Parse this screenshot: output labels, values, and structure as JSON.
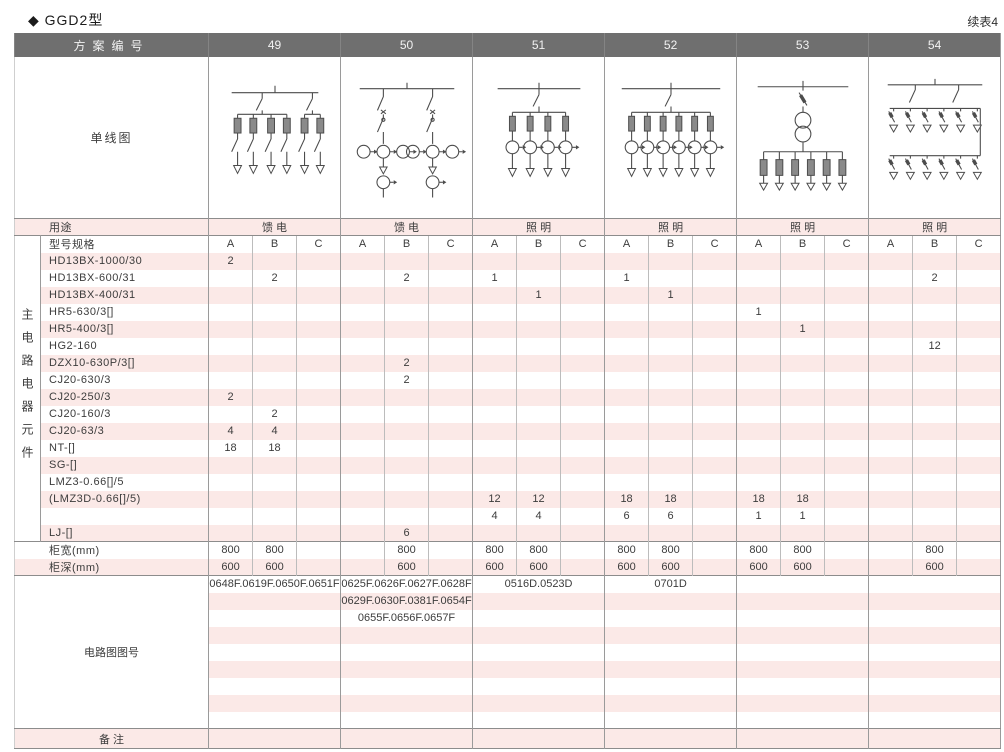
{
  "page": {
    "title": "◆ GGD2型",
    "continuation": "续表4"
  },
  "table": {
    "header": {
      "scheme_label": "方案编号",
      "schemes": [
        "49",
        "50",
        "51",
        "52",
        "53",
        "54"
      ]
    },
    "diagram_label": "单线图",
    "usage": {
      "label": "用途",
      "values": [
        "馈 电",
        "馈 电",
        "照 明",
        "照 明",
        "照 明",
        "照 明"
      ]
    },
    "left_vertical_label": "主电路电器元件",
    "spec": {
      "label": "型号规格",
      "sub_headers": [
        "A",
        "B",
        "C"
      ]
    },
    "components": [
      {
        "label": "HD13BX-1000/30",
        "values": [
          "2",
          "",
          "",
          "",
          "",
          "",
          "",
          "",
          "",
          "",
          "",
          "",
          "",
          "",
          "",
          "",
          "",
          ""
        ]
      },
      {
        "label": "HD13BX-600/31",
        "values": [
          "",
          "2",
          "",
          "",
          "2",
          "",
          "1",
          "",
          "",
          "1",
          "",
          "",
          "",
          "",
          "",
          "",
          "2",
          ""
        ]
      },
      {
        "label": "HD13BX-400/31",
        "values": [
          "",
          "",
          "",
          "",
          "",
          "",
          "",
          "1",
          "",
          "",
          "1",
          "",
          "",
          "",
          "",
          "",
          "",
          ""
        ]
      },
      {
        "label": "HR5-630/3[]",
        "values": [
          "",
          "",
          "",
          "",
          "",
          "",
          "",
          "",
          "",
          "",
          "",
          "",
          "1",
          "",
          "",
          "",
          "",
          ""
        ]
      },
      {
        "label": "HR5-400/3[]",
        "values": [
          "",
          "",
          "",
          "",
          "",
          "",
          "",
          "",
          "",
          "",
          "",
          "",
          "",
          "1",
          "",
          "",
          "",
          ""
        ]
      },
      {
        "label": "HG2-160",
        "values": [
          "",
          "",
          "",
          "",
          "",
          "",
          "",
          "",
          "",
          "",
          "",
          "",
          "",
          "",
          "",
          "",
          "12",
          ""
        ]
      },
      {
        "label": "DZX10-630P/3[]",
        "values": [
          "",
          "",
          "",
          "",
          "2",
          "",
          "",
          "",
          "",
          "",
          "",
          "",
          "",
          "",
          "",
          "",
          "",
          ""
        ]
      },
      {
        "label": "CJ20-630/3",
        "values": [
          "",
          "",
          "",
          "",
          "2",
          "",
          "",
          "",
          "",
          "",
          "",
          "",
          "",
          "",
          "",
          "",
          "",
          ""
        ]
      },
      {
        "label": "CJ20-250/3",
        "values": [
          "2",
          "",
          "",
          "",
          "",
          "",
          "",
          "",
          "",
          "",
          "",
          "",
          "",
          "",
          "",
          "",
          "",
          ""
        ]
      },
      {
        "label": "CJ20-160/3",
        "values": [
          "",
          "2",
          "",
          "",
          "",
          "",
          "",
          "",
          "",
          "",
          "",
          "",
          "",
          "",
          "",
          "",
          "",
          ""
        ]
      },
      {
        "label": "CJ20-63/3",
        "values": [
          "4",
          "4",
          "",
          "",
          "",
          "",
          "",
          "",
          "",
          "",
          "",
          "",
          "",
          "",
          "",
          "",
          "",
          ""
        ]
      },
      {
        "label": "NT-[]",
        "values": [
          "18",
          "18",
          "",
          "",
          "",
          "",
          "",
          "",
          "",
          "",
          "",
          "",
          "",
          "",
          "",
          "",
          "",
          ""
        ]
      },
      {
        "label": "SG-[]",
        "values": [
          "",
          "",
          "",
          "",
          "",
          "",
          "",
          "",
          "",
          "",
          "",
          "",
          "",
          "",
          "",
          "",
          "",
          ""
        ]
      },
      {
        "label": "LMZ3-0.66[]/5",
        "values": [
          "",
          "",
          "",
          "",
          "",
          "",
          "",
          "",
          "",
          "",
          "",
          "",
          "",
          "",
          "",
          "",
          "",
          ""
        ]
      },
      {
        "label": "(LMZ3D-0.66[]/5)",
        "values": [
          "",
          "",
          "",
          "",
          "",
          "",
          "12",
          "12",
          "",
          "18",
          "18",
          "",
          "18",
          "18",
          "",
          "",
          "",
          ""
        ]
      },
      {
        "label": "",
        "values": [
          "",
          "",
          "",
          "",
          "",
          "",
          "4",
          "4",
          "",
          "6",
          "6",
          "",
          "1",
          "1",
          "",
          "",
          "",
          ""
        ]
      },
      {
        "label": "LJ-[]",
        "values": [
          "",
          "",
          "",
          "",
          "6",
          "",
          "",
          "",
          "",
          "",
          "",
          "",
          "",
          "",
          "",
          "",
          "",
          ""
        ]
      }
    ],
    "cabinet_width": {
      "label": "柜宽(mm)",
      "values": [
        "800",
        "800",
        "",
        "",
        "800",
        "",
        "800",
        "800",
        "",
        "800",
        "800",
        "",
        "800",
        "800",
        "",
        "",
        "800",
        ""
      ]
    },
    "cabinet_depth": {
      "label": "柜深(mm)",
      "values": [
        "600",
        "600",
        "",
        "",
        "600",
        "",
        "600",
        "600",
        "",
        "600",
        "600",
        "",
        "600",
        "600",
        "",
        "",
        "600",
        ""
      ]
    },
    "circuit_label": "电路图图号",
    "circuit_numbers": [
      [
        "0648F.0619F.0650F.0651F",
        "0625F.0626F.0627F.0628F",
        "0516D.0523D",
        "0701D",
        "",
        ""
      ],
      [
        "",
        "0629F.0630F.0381F.0654F",
        "",
        "",
        "",
        ""
      ],
      [
        "",
        "0655F.0656F.0657F",
        "",
        "",
        "",
        ""
      ],
      [
        "",
        "",
        "",
        "",
        "",
        ""
      ],
      [
        "",
        "",
        "",
        "",
        "",
        ""
      ],
      [
        "",
        "",
        "",
        "",
        "",
        ""
      ],
      [
        "",
        "",
        "",
        "",
        "",
        ""
      ],
      [
        "",
        "",
        "",
        "",
        "",
        ""
      ],
      [
        "",
        "",
        "",
        "",
        "",
        ""
      ]
    ],
    "remark": {
      "label": "备 注",
      "values": [
        "",
        "",
        "",
        "",
        "",
        ""
      ]
    }
  }
}
